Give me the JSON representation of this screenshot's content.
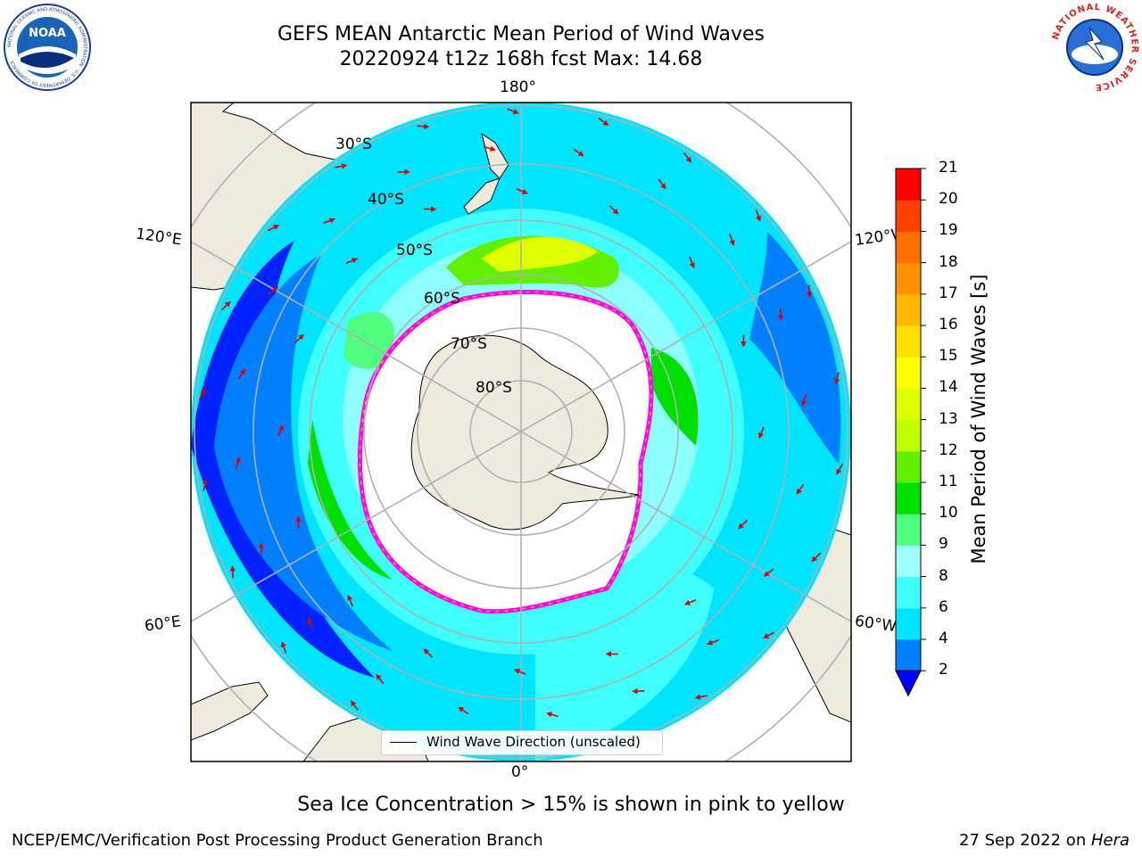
{
  "title": {
    "line1": "GEFS MEAN Antarctic Mean Period of Wind Waves",
    "line2": "20220924 t12z 168h fcst   Max: 14.68"
  },
  "logos": {
    "left": "NOAA",
    "left_ring_text": "NATIONAL OCEANIC AND ATMOSPHERIC ADMINISTRATION · U.S. DEPARTMENT OF COMMERCE",
    "right_ring_text": "NATIONAL WEATHER SERVICE"
  },
  "map": {
    "projection": "south-polar-stereographic",
    "lon_labels": {
      "top": "180°",
      "bottom": "0°",
      "upper_left": "120°E",
      "upper_right": "120°W",
      "lower_left": "60°E",
      "lower_right": "60°W"
    },
    "lat_labels": [
      "30°S",
      "40°S",
      "50°S",
      "60°S",
      "70°S",
      "80°S"
    ],
    "legend_label": "Wind Wave Direction (unscaled)",
    "land_color": "#efebdc",
    "ocean_cold_color": "#0000ff",
    "ice_edge_colors": [
      "#ff00ff",
      "#ffb000",
      "#ffff00"
    ],
    "arrow_color": "#e00000"
  },
  "colorbar": {
    "title": "Mean Period of Wind Waves [s]",
    "ticks": [
      "2",
      "4",
      "6",
      "8",
      "9",
      "10",
      "11",
      "12",
      "13",
      "14",
      "15",
      "16",
      "17",
      "18",
      "19",
      "20",
      "21"
    ],
    "colors": [
      "#0080ff",
      "#00e5ff",
      "#40ffff",
      "#a0ffff",
      "#50ff80",
      "#00e000",
      "#60f000",
      "#c0ff00",
      "#e0ff00",
      "#ffff00",
      "#ffe000",
      "#ffb800",
      "#ff9000",
      "#ff7000",
      "#ff4000",
      "#ff0000"
    ],
    "under_color": "#0000ff"
  },
  "footnote": "Sea Ice Concentration > 15% is shown in pink to yellow",
  "credits": {
    "left": "NCEP/EMC/Verification Post Processing Product Generation Branch",
    "right_prefix": "27 Sep 2022 on ",
    "right_host": "Hera"
  }
}
